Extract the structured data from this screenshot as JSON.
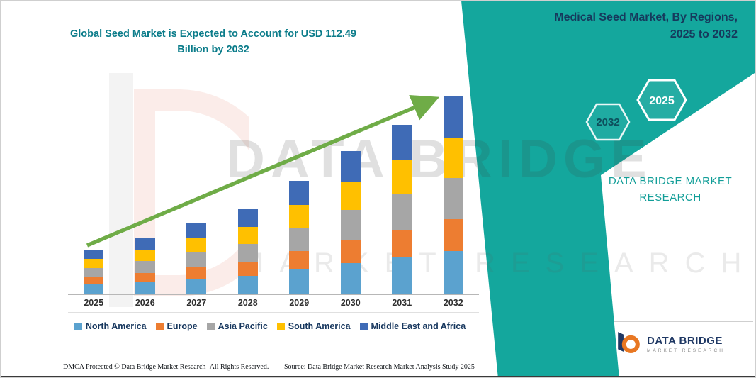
{
  "colors": {
    "teal-band": "#14A79D",
    "chart-title": "#0B7C8A",
    "right-title": "#16395C",
    "brand-teal": "#129E98",
    "arrow-green": "#6FAC47",
    "navy": "#1F3864",
    "footer-text": "#14181C"
  },
  "chart": {
    "title_line1": "Global Seed Market is Expected to Account for USD 112.49",
    "title_line2": "Billion by 2032"
  },
  "chart_data": {
    "type": "bar",
    "stacked": true,
    "title": "Global Seed Market is Expected to Account for USD 112.49 Billion by 2032",
    "unit": "USD Billion",
    "xlabel": "",
    "ylabel": "",
    "ylim": [
      0,
      120
    ],
    "grid": false,
    "legend_position": "bottom",
    "trend_arrow": true,
    "categories": [
      "2025",
      "2026",
      "2027",
      "2028",
      "2029",
      "2030",
      "2031",
      "2032"
    ],
    "series": [
      {
        "name": "North America",
        "color": "#5BA2CF",
        "values": [
          5.6,
          7.1,
          8.9,
          10.7,
          14.2,
          17.9,
          21.2,
          24.7
        ]
      },
      {
        "name": "Europe",
        "color": "#ED7D31",
        "values": [
          4.1,
          5.2,
          6.4,
          7.8,
          10.3,
          13.0,
          15.4,
          18.0
        ]
      },
      {
        "name": "Asia Pacific",
        "color": "#A6A6A6",
        "values": [
          5.3,
          6.8,
          8.5,
          10.2,
          13.5,
          17.1,
          20.2,
          23.6
        ]
      },
      {
        "name": "South America",
        "color": "#FFC000",
        "values": [
          5.1,
          6.5,
          8.1,
          9.8,
          12.9,
          16.3,
          19.3,
          22.5
        ]
      },
      {
        "name": "Middle East and Africa",
        "color": "#3F6BB6",
        "values": [
          5.3,
          6.8,
          8.5,
          10.2,
          13.5,
          17.1,
          20.2,
          23.7
        ]
      }
    ],
    "totals": [
      25.4,
      32.3,
      40.3,
      48.8,
      64.5,
      81.4,
      96.4,
      112.49
    ]
  },
  "right_panel": {
    "title_line1": "Medical Seed Market, By Regions,",
    "title_line2": "2025 to 2032",
    "hexagon_back_label": "2032",
    "hexagon_front_label": "2025",
    "brand_line1": "DATA BRIDGE MARKET",
    "brand_line2": "RESEARCH"
  },
  "watermark": {
    "line1": "DATA BRIDGE",
    "line2": "MARKET RESEARCH"
  },
  "footer": {
    "dmca": "DMCA Protected © Data Bridge Market Research-  All Rights Reserved.",
    "source": "Source: Data Bridge Market Research  Market Analysis Study 2025"
  },
  "logo": {
    "title": "DATA BRIDGE",
    "subtitle": "MARKET RESEARCH"
  }
}
